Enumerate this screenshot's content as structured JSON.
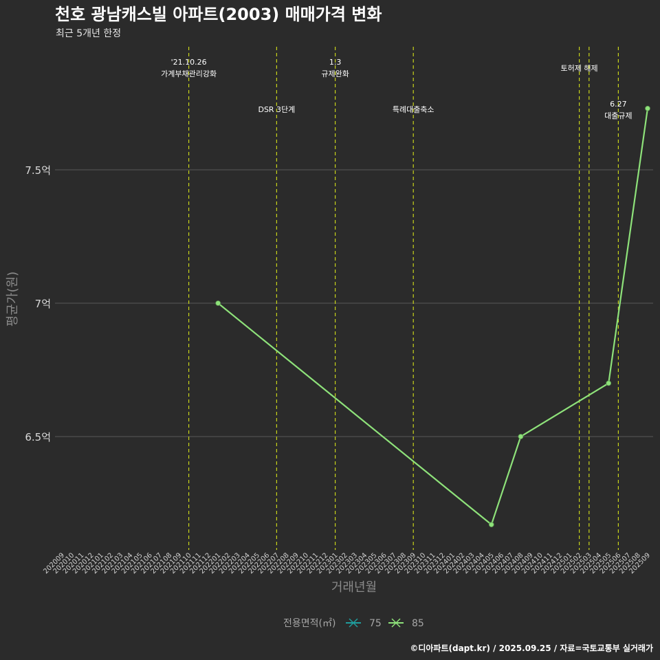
{
  "title": "천호 광남캐스빌 아파트(2003) 매매가격 변화",
  "subtitle": "최근 5개년 한정",
  "caption": "©디아파트(dapt.kr) / 2025.09.25 / 자료=국토교통부 실거래가",
  "legend": {
    "title": "전용면적(㎡)",
    "entries": [
      {
        "label": "75",
        "color": "#1f9e9e"
      },
      {
        "label": "85",
        "color": "#8ee27a"
      }
    ]
  },
  "colors": {
    "background": "#2b2b2b",
    "grid": "#5a5a5a",
    "event_line": "#c8d41a",
    "series_85": "#8ee27a",
    "series_75": "#1f9e9e"
  },
  "chart_data": {
    "type": "line",
    "xlabel": "거래년월",
    "ylabel": "평균가(원)",
    "categories": [
      "202009",
      "202010",
      "202011",
      "202012",
      "202101",
      "202102",
      "202103",
      "202104",
      "202105",
      "202106",
      "202107",
      "202108",
      "202109",
      "202110",
      "202111",
      "202112",
      "202201",
      "202202",
      "202203",
      "202204",
      "202205",
      "202206",
      "202207",
      "202208",
      "202209",
      "202210",
      "202211",
      "202212",
      "202301",
      "202302",
      "202303",
      "202304",
      "202305",
      "202306",
      "202307",
      "202308",
      "202309",
      "202310",
      "202311",
      "202312",
      "202401",
      "202402",
      "202403",
      "202404",
      "202405",
      "202406",
      "202407",
      "202408",
      "202409",
      "202410",
      "202411",
      "202412",
      "202501",
      "202502",
      "202503",
      "202504",
      "202505",
      "202506",
      "202507",
      "202508",
      "202509"
    ],
    "y_ticks": [
      {
        "value": 6.5,
        "label": "6.5억"
      },
      {
        "value": 7.0,
        "label": "7억"
      },
      {
        "value": 7.5,
        "label": "7.5억"
      }
    ],
    "ylim": [
      6.1,
      7.98
    ],
    "grid": true,
    "legend_position": "bottom",
    "series": [
      {
        "name": "75",
        "color": "#1f9e9e",
        "points": []
      },
      {
        "name": "85",
        "color": "#8ee27a",
        "points": [
          {
            "x": "202201",
            "y": 7.0
          },
          {
            "x": "202405",
            "y": 6.17
          },
          {
            "x": "202408",
            "y": 6.5
          },
          {
            "x": "202505",
            "y": 6.7
          },
          {
            "x": "202509",
            "y": 7.73
          }
        ]
      }
    ],
    "events": [
      {
        "x": "202110",
        "lines": [
          "'21.10.26",
          "가계부채관리강화"
        ],
        "row": 0
      },
      {
        "x": "202207",
        "lines": [
          "DSR 3단계"
        ],
        "row": 2
      },
      {
        "x": "202301",
        "lines": [
          "1.3",
          "규제완화"
        ],
        "row": 0
      },
      {
        "x": "202309",
        "lines": [
          "특례대출축소"
        ],
        "row": 2
      },
      {
        "x": "202502",
        "lines": [
          "토허제 해제"
        ],
        "row": 1
      },
      {
        "x": "202503",
        "lines": [],
        "row": 1
      },
      {
        "x": "202506",
        "lines": [
          "6.27",
          "대출규제"
        ],
        "row": 3
      }
    ]
  }
}
